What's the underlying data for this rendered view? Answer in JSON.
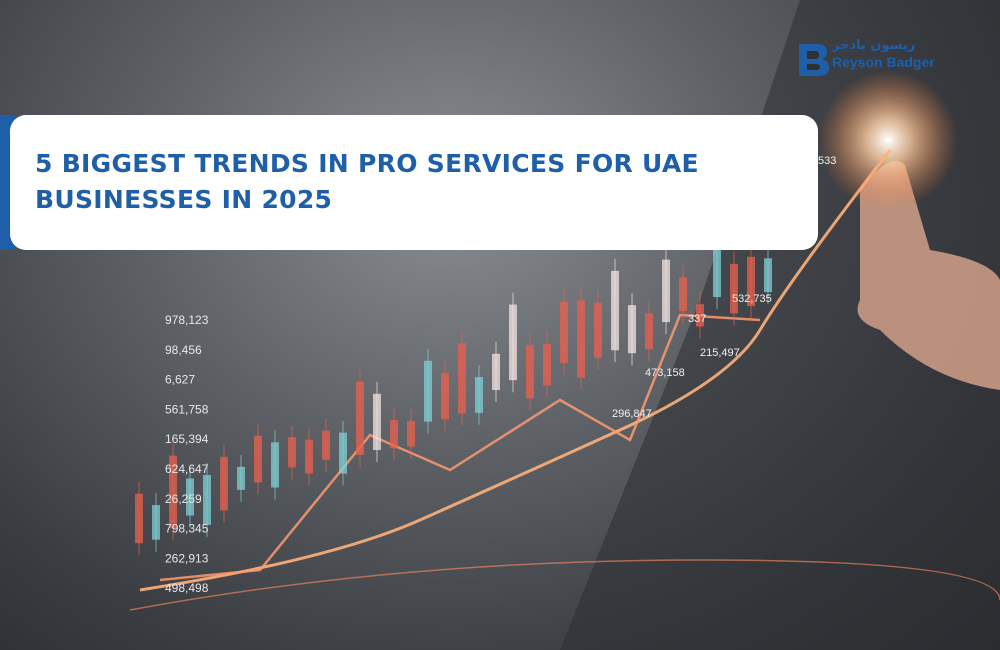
{
  "header": {
    "title": "5 BIGGEST TRENDS IN PRO SERVICES FOR UAE BUSINESSES IN 2025",
    "logo": {
      "arabic": "ريسون بادجر",
      "name": "Reyson Badger"
    }
  },
  "background": {
    "axis_labels": [
      "978,123",
      "98,456",
      "6,627",
      "561,758",
      "165,394",
      "624,647",
      "26,259",
      "798,345",
      "262,913",
      "498,498"
    ],
    "floating_labels": [
      "533",
      "532,735",
      "337",
      "215,497",
      "473,158",
      "296,847"
    ]
  }
}
